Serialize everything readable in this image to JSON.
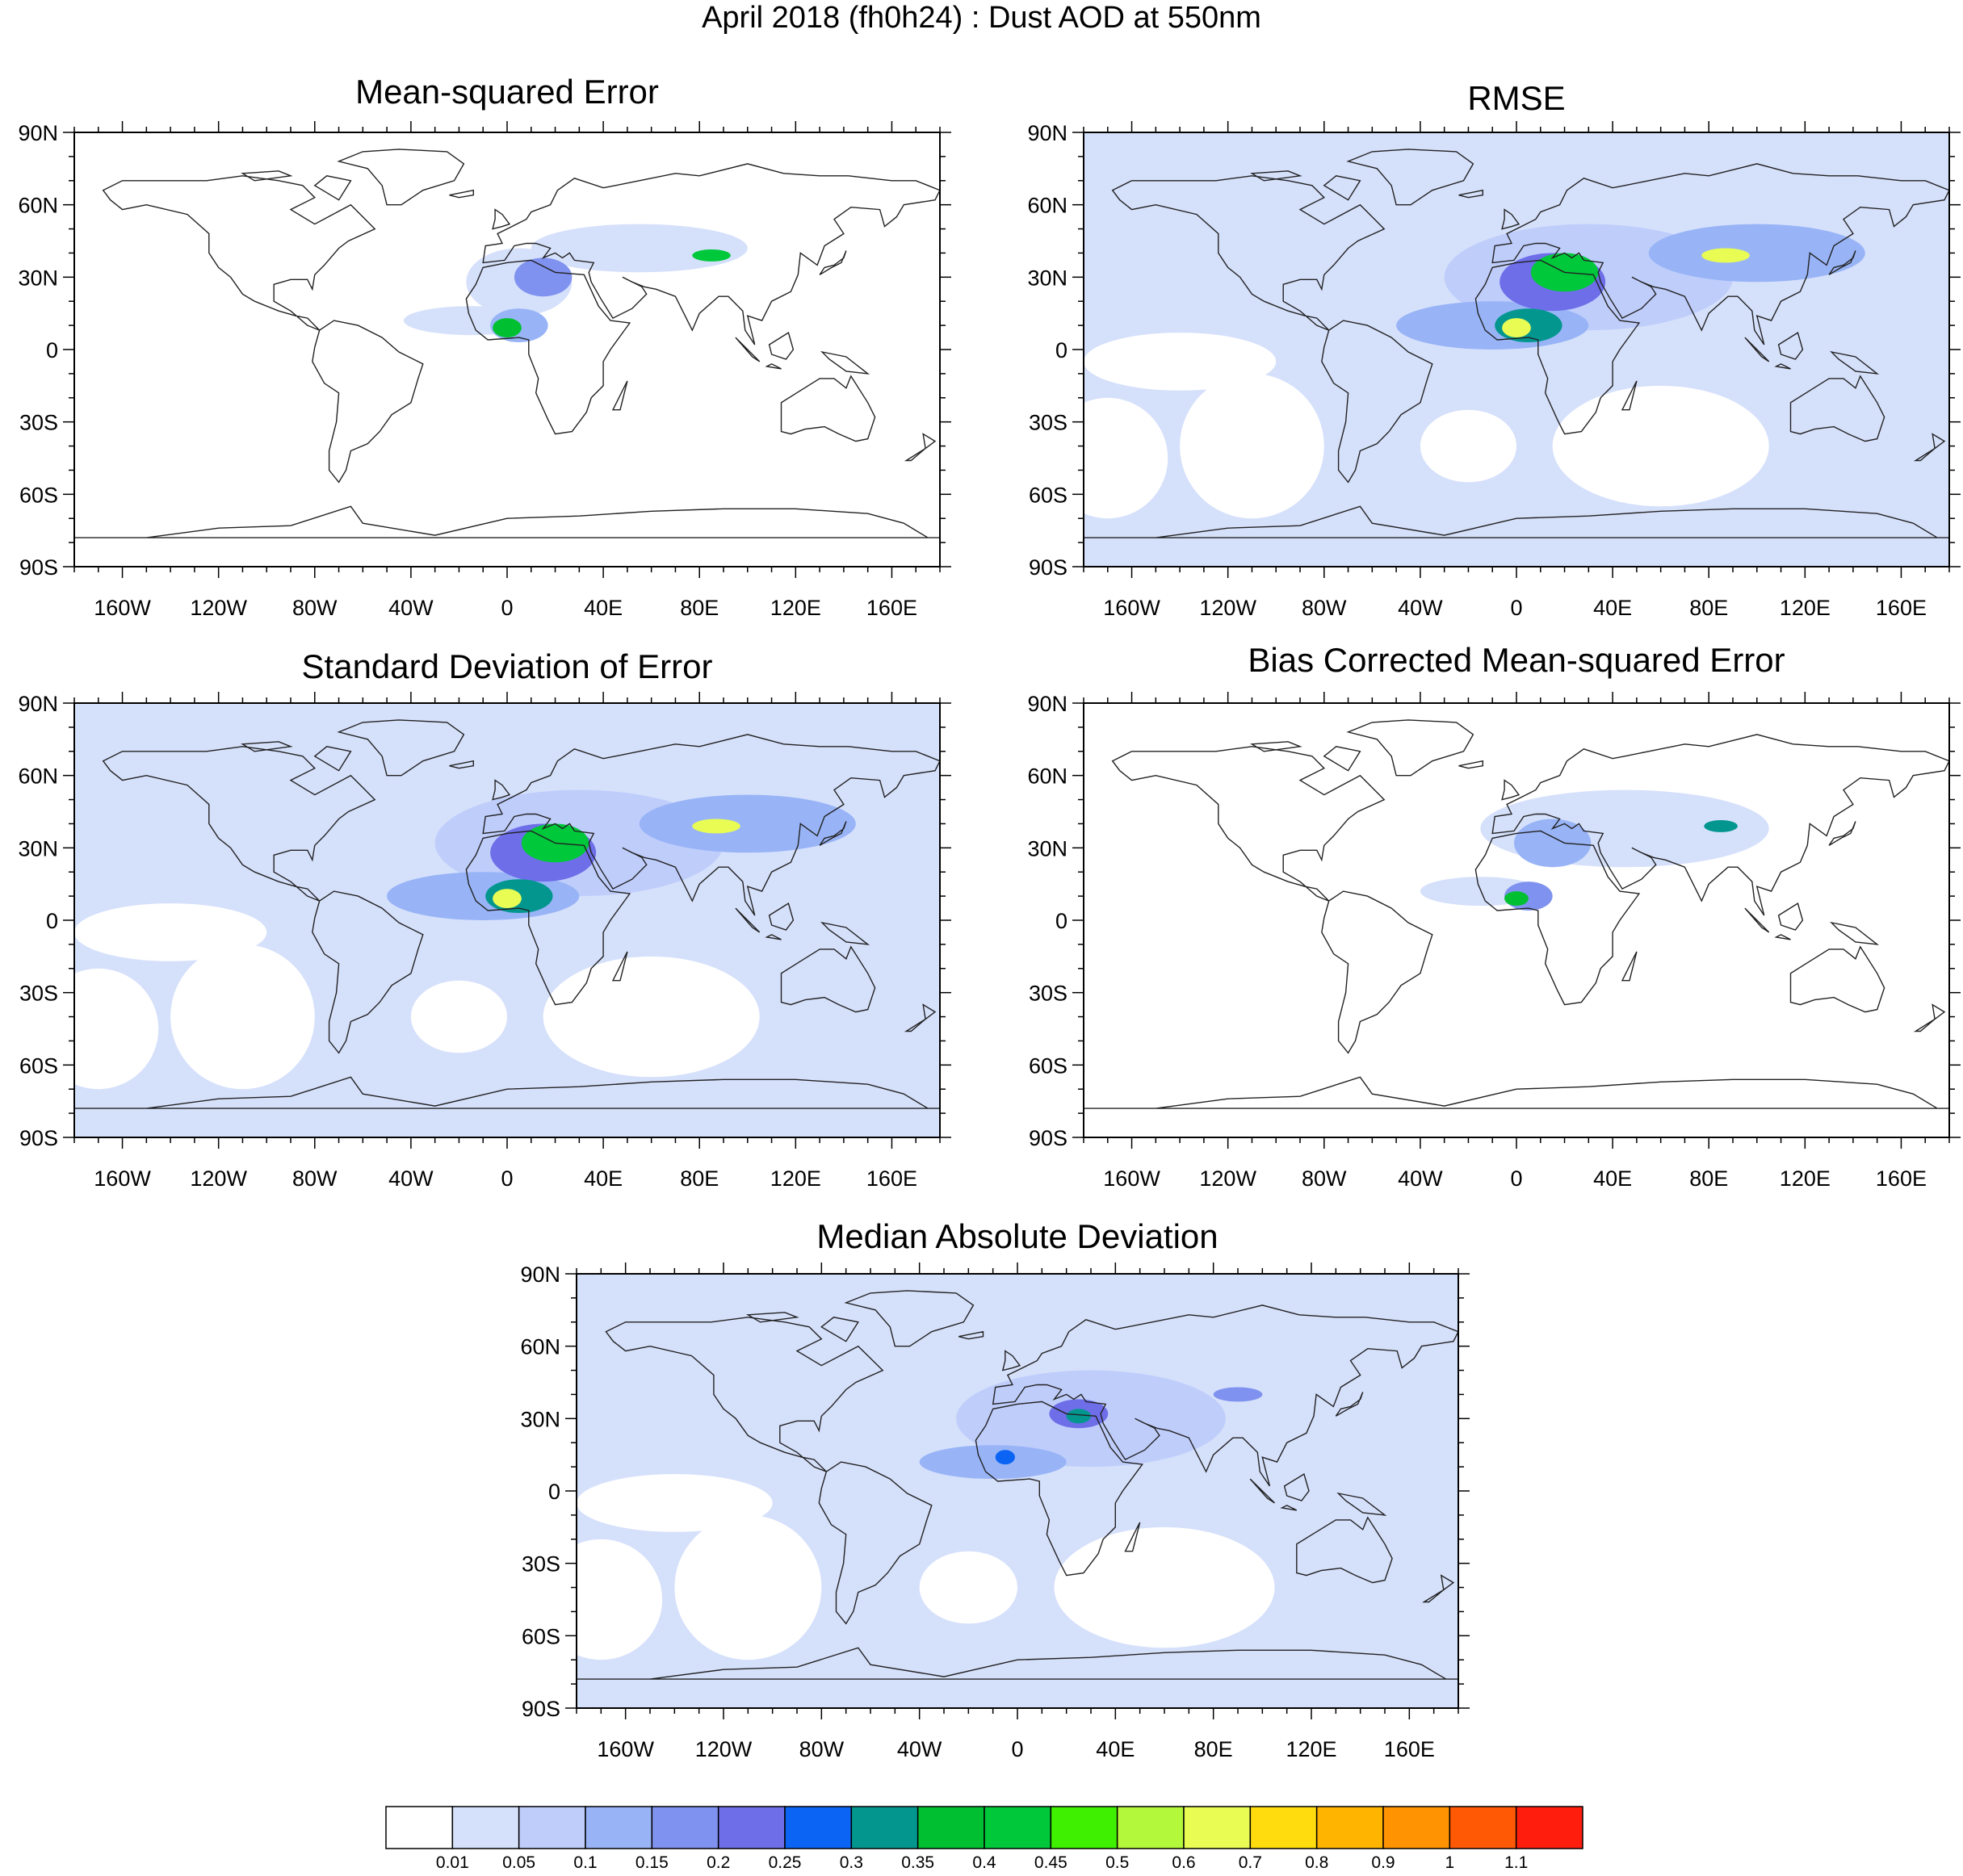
{
  "title": "April 2018 (fh0h24) : Dust AOD at 550nm",
  "lon_labels": [
    "160W",
    "120W",
    "80W",
    "40W",
    "0",
    "40E",
    "80E",
    "120E",
    "160E"
  ],
  "lon_values": [
    -160,
    -120,
    -80,
    -40,
    0,
    40,
    80,
    120,
    160
  ],
  "lat_labels": [
    "90N",
    "60N",
    "30N",
    "0",
    "30S",
    "60S",
    "90S"
  ],
  "lat_values": [
    90,
    60,
    30,
    0,
    -30,
    -60,
    -90
  ],
  "panels": [
    {
      "id": "mse",
      "title": "Mean-squared Error",
      "bg": 0,
      "blobs": [
        {
          "lon": 5,
          "lat": 28,
          "rx": 22,
          "ry": 14,
          "level": 1
        },
        {
          "lon": -15,
          "lat": 12,
          "rx": 28,
          "ry": 6,
          "level": 1
        },
        {
          "lon": 55,
          "lat": 42,
          "rx": 45,
          "ry": 10,
          "level": 1
        },
        {
          "lon": 5,
          "lat": 10,
          "rx": 12,
          "ry": 7,
          "level": 3
        },
        {
          "lon": 0,
          "lat": 9,
          "rx": 6,
          "ry": 4,
          "level": 8
        },
        {
          "lon": 15,
          "lat": 30,
          "rx": 12,
          "ry": 8,
          "level": 4
        },
        {
          "lon": 85,
          "lat": 39,
          "rx": 8,
          "ry": 2.5,
          "level": 9
        }
      ]
    },
    {
      "id": "rmse",
      "title": "RMSE",
      "bg": 1,
      "blobs": [
        {
          "lon": 30,
          "lat": 30,
          "rx": 60,
          "ry": 22,
          "level": 2
        },
        {
          "lon": -10,
          "lat": 10,
          "rx": 40,
          "ry": 10,
          "level": 3
        },
        {
          "lon": 100,
          "lat": 40,
          "rx": 45,
          "ry": 12,
          "level": 3
        },
        {
          "lon": 15,
          "lat": 28,
          "rx": 22,
          "ry": 12,
          "level": 5
        },
        {
          "lon": 5,
          "lat": 10,
          "rx": 14,
          "ry": 7,
          "level": 7
        },
        {
          "lon": 20,
          "lat": 32,
          "rx": 14,
          "ry": 8,
          "level": 9
        },
        {
          "lon": 0,
          "lat": 9,
          "rx": 6,
          "ry": 4,
          "level": 12
        },
        {
          "lon": 87,
          "lat": 39,
          "rx": 10,
          "ry": 3,
          "level": 12
        }
      ]
    },
    {
      "id": "stddev",
      "title": "Standard Deviation of Error",
      "bg": 1,
      "blobs": [
        {
          "lon": 30,
          "lat": 32,
          "rx": 60,
          "ry": 22,
          "level": 2
        },
        {
          "lon": -10,
          "lat": 10,
          "rx": 40,
          "ry": 10,
          "level": 3
        },
        {
          "lon": 100,
          "lat": 40,
          "rx": 45,
          "ry": 12,
          "level": 3
        },
        {
          "lon": 15,
          "lat": 28,
          "rx": 22,
          "ry": 12,
          "level": 5
        },
        {
          "lon": 5,
          "lat": 10,
          "rx": 14,
          "ry": 7,
          "level": 7
        },
        {
          "lon": 20,
          "lat": 32,
          "rx": 14,
          "ry": 8,
          "level": 9
        },
        {
          "lon": 0,
          "lat": 9,
          "rx": 6,
          "ry": 4,
          "level": 12
        },
        {
          "lon": 87,
          "lat": 39,
          "rx": 10,
          "ry": 3,
          "level": 12
        }
      ]
    },
    {
      "id": "biascorr",
      "title": "Bias Corrected Mean-squared Error",
      "bg": 0,
      "blobs": [
        {
          "lon": 45,
          "lat": 38,
          "rx": 60,
          "ry": 16,
          "level": 1
        },
        {
          "lon": -15,
          "lat": 12,
          "rx": 25,
          "ry": 6,
          "level": 1
        },
        {
          "lon": 15,
          "lat": 32,
          "rx": 16,
          "ry": 10,
          "level": 3
        },
        {
          "lon": 5,
          "lat": 10,
          "rx": 10,
          "ry": 6,
          "level": 4
        },
        {
          "lon": 0,
          "lat": 9,
          "rx": 5,
          "ry": 3,
          "level": 8
        },
        {
          "lon": 85,
          "lat": 39,
          "rx": 7,
          "ry": 2.5,
          "level": 7
        }
      ]
    },
    {
      "id": "mad",
      "title": "Median Absolute Deviation",
      "bg": 1,
      "blobs": [
        {
          "lon": 30,
          "lat": 30,
          "rx": 55,
          "ry": 20,
          "level": 2
        },
        {
          "lon": -10,
          "lat": 12,
          "rx": 30,
          "ry": 7,
          "level": 3
        },
        {
          "lon": 25,
          "lat": 32,
          "rx": 12,
          "ry": 6,
          "level": 5
        },
        {
          "lon": 25,
          "lat": 31,
          "rx": 5,
          "ry": 3,
          "level": 7
        },
        {
          "lon": 90,
          "lat": 40,
          "rx": 10,
          "ry": 3,
          "level": 4
        },
        {
          "lon": -5,
          "lat": 14,
          "rx": 4,
          "ry": 3,
          "level": 6
        }
      ]
    }
  ],
  "colorbar": {
    "colors": [
      "#ffffff",
      "#d5e0fb",
      "#bfcdfb",
      "#98b4f7",
      "#8092ef",
      "#6d6ee8",
      "#0b64f4",
      "#03968f",
      "#00c032",
      "#00c83b",
      "#3ff001",
      "#b4f83b",
      "#e8fc54",
      "#ffdc0e",
      "#ffb500",
      "#ff9302",
      "#ff5906",
      "#ff1e0e"
    ],
    "labels": [
      "0.01",
      "0.05",
      "0.1",
      "0.15",
      "0.2",
      "0.25",
      "0.3",
      "0.35",
      "0.4",
      "0.45",
      "0.5",
      "0.6",
      "0.7",
      "0.8",
      "0.9",
      "1",
      "1.1"
    ]
  }
}
